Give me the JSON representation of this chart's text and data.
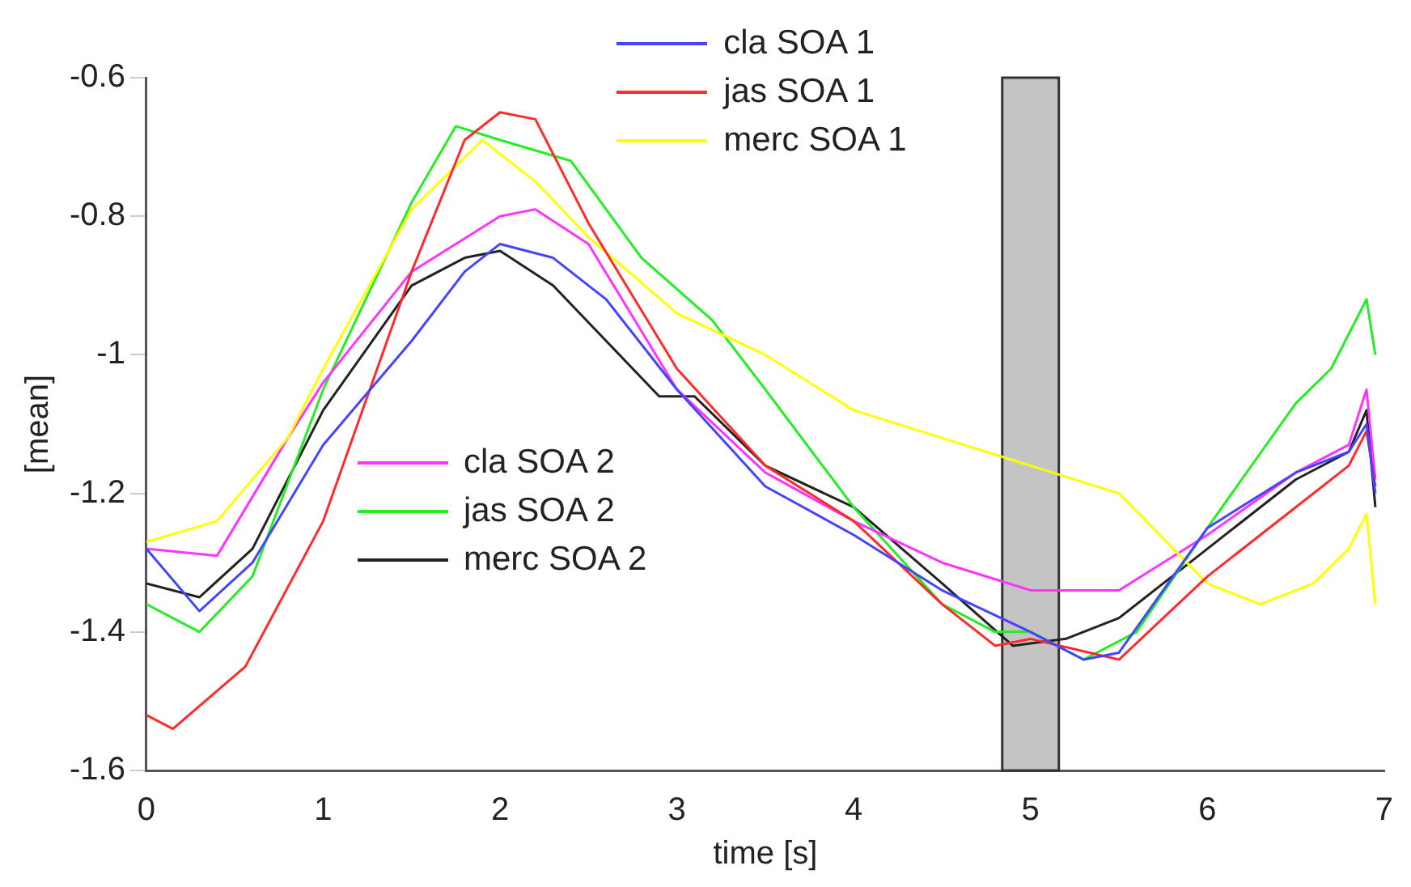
{
  "chart_data": {
    "type": "line",
    "xlabel": "time [s]",
    "ylabel": "[mean]",
    "xlim": [
      0,
      7
    ],
    "xticks": [
      0,
      1,
      2,
      3,
      4,
      5,
      6,
      7
    ],
    "ylim": [
      -1.6,
      -0.6
    ],
    "yticks": [
      -1.6,
      -1.4,
      -1.2,
      -1,
      -0.8,
      -0.6
    ],
    "grid": false,
    "legend": "top",
    "marker": "none",
    "line_style": "solid",
    "bands": [
      {
        "axis": "x",
        "from": 4.84,
        "to": 5.16,
        "color": "#c4c4c4"
      }
    ],
    "series": [
      {
        "name": "cla SOA 1",
        "color": "#4444ff",
        "x": [
          0,
          0.3,
          0.6,
          1.0,
          1.5,
          1.8,
          2.0,
          2.3,
          2.6,
          3.0,
          3.5,
          4.0,
          4.5,
          5.0,
          5.3,
          5.5,
          6.0,
          6.5,
          6.8,
          6.9,
          6.95
        ],
        "values": [
          -1.28,
          -1.37,
          -1.3,
          -1.13,
          -0.98,
          -0.88,
          -0.84,
          -0.86,
          -0.92,
          -1.05,
          -1.19,
          -1.26,
          -1.34,
          -1.4,
          -1.44,
          -1.43,
          -1.25,
          -1.17,
          -1.14,
          -1.1,
          -1.2
        ]
      },
      {
        "name": "jas SOA 1",
        "color": "#ff2a2a",
        "x": [
          0,
          0.15,
          0.56,
          1.0,
          1.5,
          1.8,
          2.0,
          2.2,
          2.5,
          3.0,
          3.5,
          4.0,
          4.5,
          4.8,
          5.0,
          5.5,
          6.0,
          6.5,
          6.8,
          6.9,
          6.95
        ],
        "values": [
          -1.52,
          -1.54,
          -1.45,
          -1.24,
          -0.88,
          -0.69,
          -0.65,
          -0.66,
          -0.81,
          -1.02,
          -1.16,
          -1.24,
          -1.36,
          -1.42,
          -1.41,
          -1.44,
          -1.32,
          -1.22,
          -1.16,
          -1.11,
          -1.19
        ]
      },
      {
        "name": "merc SOA 1",
        "color": "#ffff00",
        "x": [
          0,
          0.4,
          0.8,
          1.0,
          1.5,
          1.9,
          2.2,
          2.5,
          3.0,
          3.5,
          4.0,
          4.5,
          5.0,
          5.5,
          6.0,
          6.3,
          6.6,
          6.8,
          6.9,
          6.95
        ],
        "values": [
          -1.27,
          -1.24,
          -1.12,
          -1.02,
          -0.79,
          -0.69,
          -0.75,
          -0.83,
          -0.94,
          -1.0,
          -1.08,
          -1.12,
          -1.16,
          -1.2,
          -1.33,
          -1.36,
          -1.33,
          -1.28,
          -1.23,
          -1.36
        ]
      },
      {
        "name": "cla SOA 2",
        "color": "#ff33ff",
        "x": [
          0,
          0.4,
          0.8,
          1.0,
          1.5,
          2.0,
          2.2,
          2.5,
          3.0,
          3.5,
          4.0,
          4.5,
          5.0,
          5.5,
          6.0,
          6.5,
          6.8,
          6.9,
          6.95
        ],
        "values": [
          -1.28,
          -1.29,
          -1.12,
          -1.04,
          -0.88,
          -0.8,
          -0.79,
          -0.84,
          -1.05,
          -1.17,
          -1.24,
          -1.3,
          -1.34,
          -1.34,
          -1.26,
          -1.17,
          -1.13,
          -1.05,
          -1.18
        ]
      },
      {
        "name": "jas SOA 2",
        "color": "#22ee22",
        "x": [
          0,
          0.3,
          0.6,
          1.0,
          1.5,
          1.75,
          2.0,
          2.4,
          2.8,
          3.2,
          3.5,
          4.0,
          4.5,
          4.8,
          5.0,
          5.3,
          5.6,
          6.0,
          6.5,
          6.7,
          6.9,
          6.95
        ],
        "values": [
          -1.36,
          -1.4,
          -1.32,
          -1.05,
          -0.78,
          -0.67,
          -0.69,
          -0.72,
          -0.86,
          -0.95,
          -1.05,
          -1.22,
          -1.36,
          -1.4,
          -1.4,
          -1.44,
          -1.4,
          -1.25,
          -1.07,
          -1.02,
          -0.92,
          -1.0
        ]
      },
      {
        "name": "merc SOA 2",
        "color": "#222222",
        "x": [
          0,
          0.3,
          0.6,
          1.0,
          1.5,
          1.8,
          2.0,
          2.3,
          2.6,
          2.9,
          3.1,
          3.5,
          4.0,
          4.5,
          4.9,
          5.2,
          5.5,
          6.0,
          6.5,
          6.8,
          6.9,
          6.95
        ],
        "values": [
          -1.33,
          -1.35,
          -1.28,
          -1.08,
          -0.9,
          -0.86,
          -0.85,
          -0.9,
          -0.98,
          -1.06,
          -1.06,
          -1.16,
          -1.22,
          -1.33,
          -1.42,
          -1.41,
          -1.38,
          -1.28,
          -1.18,
          -1.14,
          -1.08,
          -1.22
        ]
      }
    ]
  }
}
